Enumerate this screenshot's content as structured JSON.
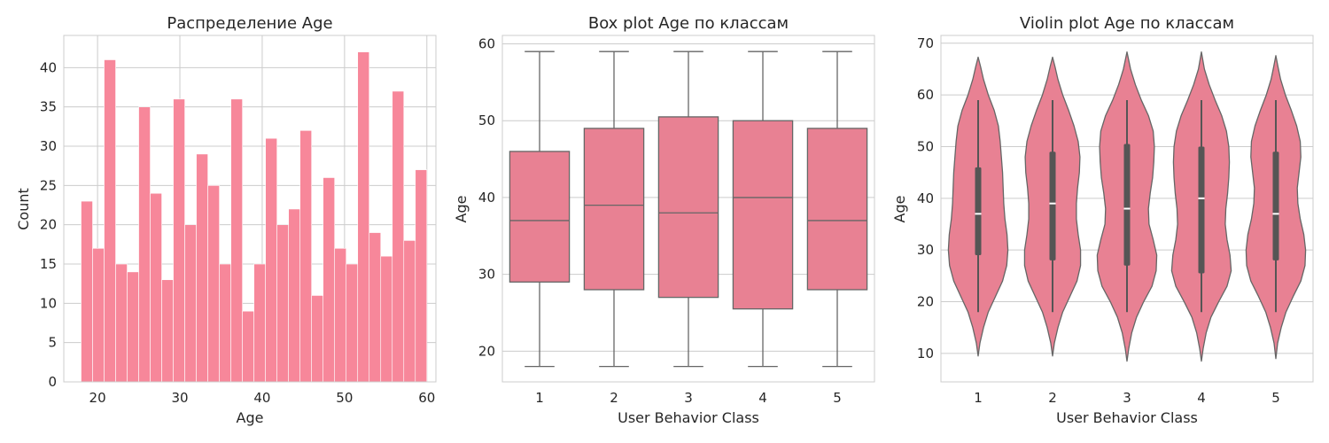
{
  "chart_data": [
    {
      "type": "bar",
      "title": "Распределение Age",
      "xlabel": "Age",
      "ylabel": "Count",
      "xlim": [
        15.9,
        61.1
      ],
      "ylim": [
        0,
        44.1
      ],
      "xticks": [
        20,
        30,
        40,
        50,
        60
      ],
      "yticks": [
        0,
        5,
        10,
        15,
        20,
        25,
        30,
        35,
        40
      ],
      "bins": [
        {
          "start": 18.0,
          "end": 19.4,
          "count": 23
        },
        {
          "start": 19.4,
          "end": 20.8,
          "count": 17
        },
        {
          "start": 20.8,
          "end": 22.2,
          "count": 41
        },
        {
          "start": 22.2,
          "end": 23.6,
          "count": 15
        },
        {
          "start": 23.6,
          "end": 25.0,
          "count": 14
        },
        {
          "start": 25.0,
          "end": 26.4,
          "count": 35
        },
        {
          "start": 26.4,
          "end": 27.8,
          "count": 24
        },
        {
          "start": 27.8,
          "end": 29.2,
          "count": 13
        },
        {
          "start": 29.2,
          "end": 30.6,
          "count": 36
        },
        {
          "start": 30.6,
          "end": 32.0,
          "count": 20
        },
        {
          "start": 32.0,
          "end": 33.4,
          "count": 29
        },
        {
          "start": 33.4,
          "end": 34.8,
          "count": 25
        },
        {
          "start": 34.8,
          "end": 36.2,
          "count": 15
        },
        {
          "start": 36.2,
          "end": 37.6,
          "count": 36
        },
        {
          "start": 37.6,
          "end": 39.0,
          "count": 9
        },
        {
          "start": 39.0,
          "end": 40.4,
          "count": 15
        },
        {
          "start": 40.4,
          "end": 41.8,
          "count": 31
        },
        {
          "start": 41.8,
          "end": 43.2,
          "count": 20
        },
        {
          "start": 43.2,
          "end": 44.6,
          "count": 22
        },
        {
          "start": 44.6,
          "end": 46.0,
          "count": 32
        },
        {
          "start": 46.0,
          "end": 47.4,
          "count": 11
        },
        {
          "start": 47.4,
          "end": 48.8,
          "count": 26
        },
        {
          "start": 48.8,
          "end": 50.2,
          "count": 17
        },
        {
          "start": 50.2,
          "end": 51.6,
          "count": 15
        },
        {
          "start": 51.6,
          "end": 53.0,
          "count": 42
        },
        {
          "start": 53.0,
          "end": 54.4,
          "count": 19
        },
        {
          "start": 54.4,
          "end": 55.8,
          "count": 16
        },
        {
          "start": 55.8,
          "end": 57.2,
          "count": 37
        },
        {
          "start": 57.2,
          "end": 58.6,
          "count": 18
        },
        {
          "start": 58.6,
          "end": 60.0,
          "count": 27
        }
      ],
      "color": "#f7879a",
      "grid": true
    },
    {
      "type": "box",
      "title": "Box plot Age по классам",
      "xlabel": "User Behavior Class",
      "ylabel": "Age",
      "ylim": [
        16,
        61.1
      ],
      "yticks": [
        20,
        30,
        40,
        50,
        60
      ],
      "categories": [
        "1",
        "2",
        "3",
        "4",
        "5"
      ],
      "boxes": [
        {
          "min": 18,
          "q1": 29,
          "median": 37,
          "q3": 46,
          "max": 59
        },
        {
          "min": 18,
          "q1": 28,
          "median": 39,
          "q3": 49,
          "max": 59
        },
        {
          "min": 18,
          "q1": 27,
          "median": 38,
          "q3": 50.5,
          "max": 59
        },
        {
          "min": 18,
          "q1": 25.5,
          "median": 40,
          "q3": 50,
          "max": 59
        },
        {
          "min": 18,
          "q1": 28,
          "median": 37,
          "q3": 49,
          "max": 59
        }
      ],
      "color": "#e88193",
      "line_color": "#666666",
      "grid": true
    },
    {
      "type": "violin",
      "title": "Violin plot Age по классам",
      "xlabel": "User Behavior Class",
      "ylabel": "Age",
      "ylim": [
        4.5,
        71.5
      ],
      "yticks": [
        10,
        20,
        30,
        40,
        50,
        60,
        70
      ],
      "categories": [
        "1",
        "2",
        "3",
        "4",
        "5"
      ],
      "violins": [
        {
          "min": 9.5,
          "max": 67.3,
          "q1": 29,
          "median": 37,
          "q3": 46,
          "whisker_low": 18,
          "whisker_high": 59,
          "profile": [
            [
              9.5,
              0
            ],
            [
              12,
              0.06
            ],
            [
              15,
              0.18
            ],
            [
              18,
              0.34
            ],
            [
              21,
              0.58
            ],
            [
              24,
              0.82
            ],
            [
              27,
              0.96
            ],
            [
              30,
              1.0
            ],
            [
              33,
              0.97
            ],
            [
              36,
              0.9
            ],
            [
              39,
              0.86
            ],
            [
              42,
              0.84
            ],
            [
              45,
              0.82
            ],
            [
              48,
              0.78
            ],
            [
              51,
              0.74
            ],
            [
              54,
              0.68
            ],
            [
              57,
              0.54
            ],
            [
              60,
              0.34
            ],
            [
              63,
              0.18
            ],
            [
              65.5,
              0.08
            ],
            [
              67.3,
              0
            ]
          ]
        },
        {
          "min": 9.5,
          "max": 67.3,
          "q1": 28,
          "median": 39,
          "q3": 49,
          "whisker_low": 18,
          "whisker_high": 59,
          "profile": [
            [
              9.5,
              0
            ],
            [
              12,
              0.06
            ],
            [
              15,
              0.18
            ],
            [
              18,
              0.34
            ],
            [
              21,
              0.58
            ],
            [
              24,
              0.82
            ],
            [
              27,
              0.94
            ],
            [
              30,
              0.94
            ],
            [
              33,
              0.86
            ],
            [
              36,
              0.8
            ],
            [
              39,
              0.8
            ],
            [
              42,
              0.84
            ],
            [
              45,
              0.9
            ],
            [
              48,
              0.92
            ],
            [
              51,
              0.86
            ],
            [
              54,
              0.72
            ],
            [
              57,
              0.54
            ],
            [
              60,
              0.34
            ],
            [
              63,
              0.18
            ],
            [
              65.5,
              0.08
            ],
            [
              67.3,
              0
            ]
          ]
        },
        {
          "min": 8.5,
          "max": 68.3,
          "q1": 27,
          "median": 38,
          "q3": 50.5,
          "whisker_low": 18,
          "whisker_high": 59,
          "profile": [
            [
              8.5,
              0
            ],
            [
              11,
              0.06
            ],
            [
              14,
              0.16
            ],
            [
              17,
              0.32
            ],
            [
              20,
              0.56
            ],
            [
              23,
              0.84
            ],
            [
              26,
              0.98
            ],
            [
              29,
              1.0
            ],
            [
              32,
              0.88
            ],
            [
              35,
              0.74
            ],
            [
              38,
              0.72
            ],
            [
              41,
              0.78
            ],
            [
              44,
              0.86
            ],
            [
              47,
              0.9
            ],
            [
              50,
              0.92
            ],
            [
              53,
              0.88
            ],
            [
              56,
              0.72
            ],
            [
              59,
              0.48
            ],
            [
              62,
              0.28
            ],
            [
              65,
              0.12
            ],
            [
              68.3,
              0
            ]
          ]
        },
        {
          "min": 8.5,
          "max": 68.3,
          "q1": 25.5,
          "median": 40,
          "q3": 50,
          "whisker_low": 18,
          "whisker_high": 59,
          "profile": [
            [
              8.5,
              0
            ],
            [
              11,
              0.06
            ],
            [
              14,
              0.16
            ],
            [
              17,
              0.32
            ],
            [
              20,
              0.58
            ],
            [
              23,
              0.86
            ],
            [
              26,
              1.0
            ],
            [
              29,
              0.96
            ],
            [
              32,
              0.86
            ],
            [
              35,
              0.8
            ],
            [
              38,
              0.82
            ],
            [
              41,
              0.88
            ],
            [
              44,
              0.92
            ],
            [
              47,
              0.94
            ],
            [
              50,
              0.92
            ],
            [
              53,
              0.84
            ],
            [
              56,
              0.68
            ],
            [
              59,
              0.46
            ],
            [
              62,
              0.26
            ],
            [
              65,
              0.1
            ],
            [
              68.3,
              0
            ]
          ]
        },
        {
          "min": 9.0,
          "max": 67.6,
          "q1": 28,
          "median": 37,
          "q3": 49,
          "whisker_low": 18,
          "whisker_high": 59,
          "profile": [
            [
              9,
              0
            ],
            [
              12,
              0.06
            ],
            [
              15,
              0.18
            ],
            [
              18,
              0.34
            ],
            [
              21,
              0.58
            ],
            [
              24,
              0.84
            ],
            [
              27,
              0.98
            ],
            [
              30,
              1.0
            ],
            [
              33,
              0.94
            ],
            [
              36,
              0.82
            ],
            [
              39,
              0.74
            ],
            [
              42,
              0.72
            ],
            [
              45,
              0.78
            ],
            [
              48,
              0.84
            ],
            [
              51,
              0.82
            ],
            [
              54,
              0.7
            ],
            [
              57,
              0.52
            ],
            [
              60,
              0.32
            ],
            [
              63,
              0.16
            ],
            [
              65.5,
              0.07
            ],
            [
              67.6,
              0
            ]
          ]
        }
      ],
      "color": "#e88193",
      "line_color": "#666666",
      "inner_box_color": "#555555",
      "median_color": "#ffffff",
      "grid": true
    }
  ]
}
